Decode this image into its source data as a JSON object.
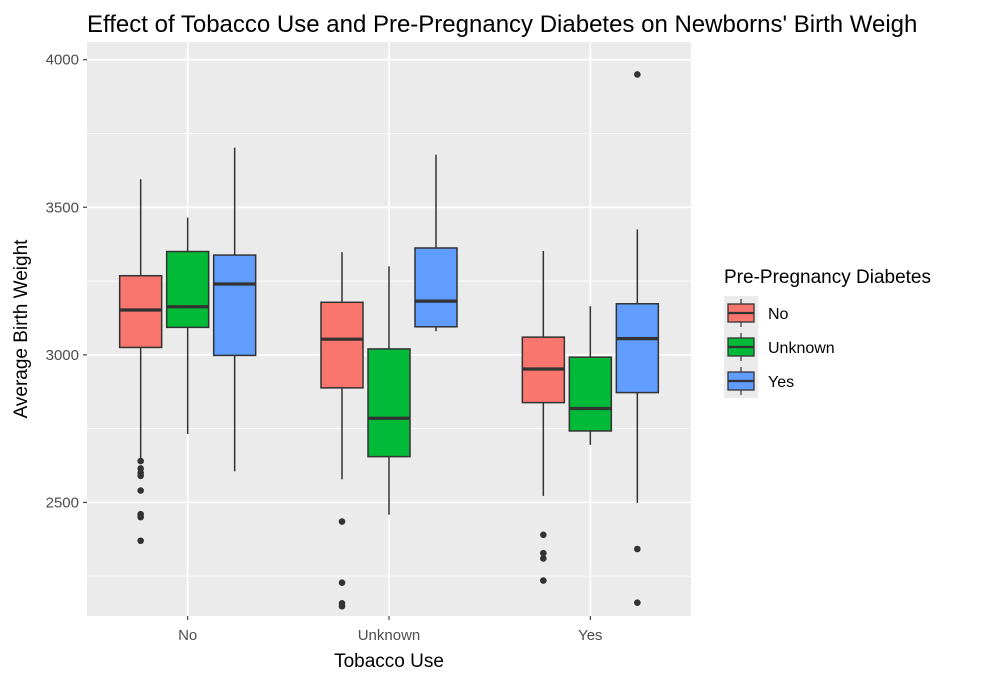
{
  "chart_data": {
    "type": "boxplot",
    "title": "Effect of Tobacco Use and Pre-Pregnancy Diabetes on Newborns' Birth Weigh",
    "xlabel": "Tobacco Use",
    "ylabel": "Average Birth Weight",
    "categories": [
      "No",
      "Unknown",
      "Yes"
    ],
    "y_ticks": [
      2500,
      3000,
      3500,
      4000
    ],
    "ylim": [
      2115,
      4060
    ],
    "grid": true,
    "legend": {
      "title": "Pre-Pregnancy Diabetes",
      "position": "right"
    },
    "series": [
      {
        "name": "No",
        "color": "#F8766D",
        "boxes": [
          {
            "category": "No",
            "whisker_low": 2650,
            "q1": 3025,
            "median": 3152,
            "q3": 3268,
            "whisker_high": 3595,
            "outliers": [
              2640,
              2615,
              2600,
              2590,
              2540,
              2460,
              2450,
              2370
            ]
          },
          {
            "category": "Unknown",
            "whisker_low": 2578,
            "q1": 2888,
            "median": 3053,
            "q3": 3178,
            "whisker_high": 3348,
            "outliers": [
              2435,
              2228,
              2158,
              2148
            ]
          },
          {
            "category": "Yes",
            "whisker_low": 2522,
            "q1": 2838,
            "median": 2952,
            "q3": 3060,
            "whisker_high": 3352,
            "outliers": [
              2390,
              2328,
              2310,
              2235
            ]
          }
        ]
      },
      {
        "name": "Unknown",
        "color": "#00BA38",
        "boxes": [
          {
            "category": "No",
            "whisker_low": 2732,
            "q1": 3093,
            "median": 3163,
            "q3": 3350,
            "whisker_high": 3465,
            "outliers": []
          },
          {
            "category": "Unknown",
            "whisker_low": 2458,
            "q1": 2655,
            "median": 2785,
            "q3": 3020,
            "whisker_high": 3300,
            "outliers": []
          },
          {
            "category": "Yes",
            "whisker_low": 2695,
            "q1": 2742,
            "median": 2818,
            "q3": 2992,
            "whisker_high": 3165,
            "outliers": []
          }
        ]
      },
      {
        "name": "Yes",
        "color": "#619CFF",
        "boxes": [
          {
            "category": "No",
            "whisker_low": 2605,
            "q1": 2998,
            "median": 3240,
            "q3": 3338,
            "whisker_high": 3702,
            "outliers": []
          },
          {
            "category": "Unknown",
            "whisker_low": 3080,
            "q1": 3095,
            "median": 3182,
            "q3": 3362,
            "whisker_high": 3678,
            "outliers": []
          },
          {
            "category": "Yes",
            "whisker_low": 2498,
            "q1": 2872,
            "median": 3055,
            "q3": 3173,
            "whisker_high": 3425,
            "outliers": [
              3950,
              2342,
              2160
            ]
          }
        ]
      }
    ]
  }
}
